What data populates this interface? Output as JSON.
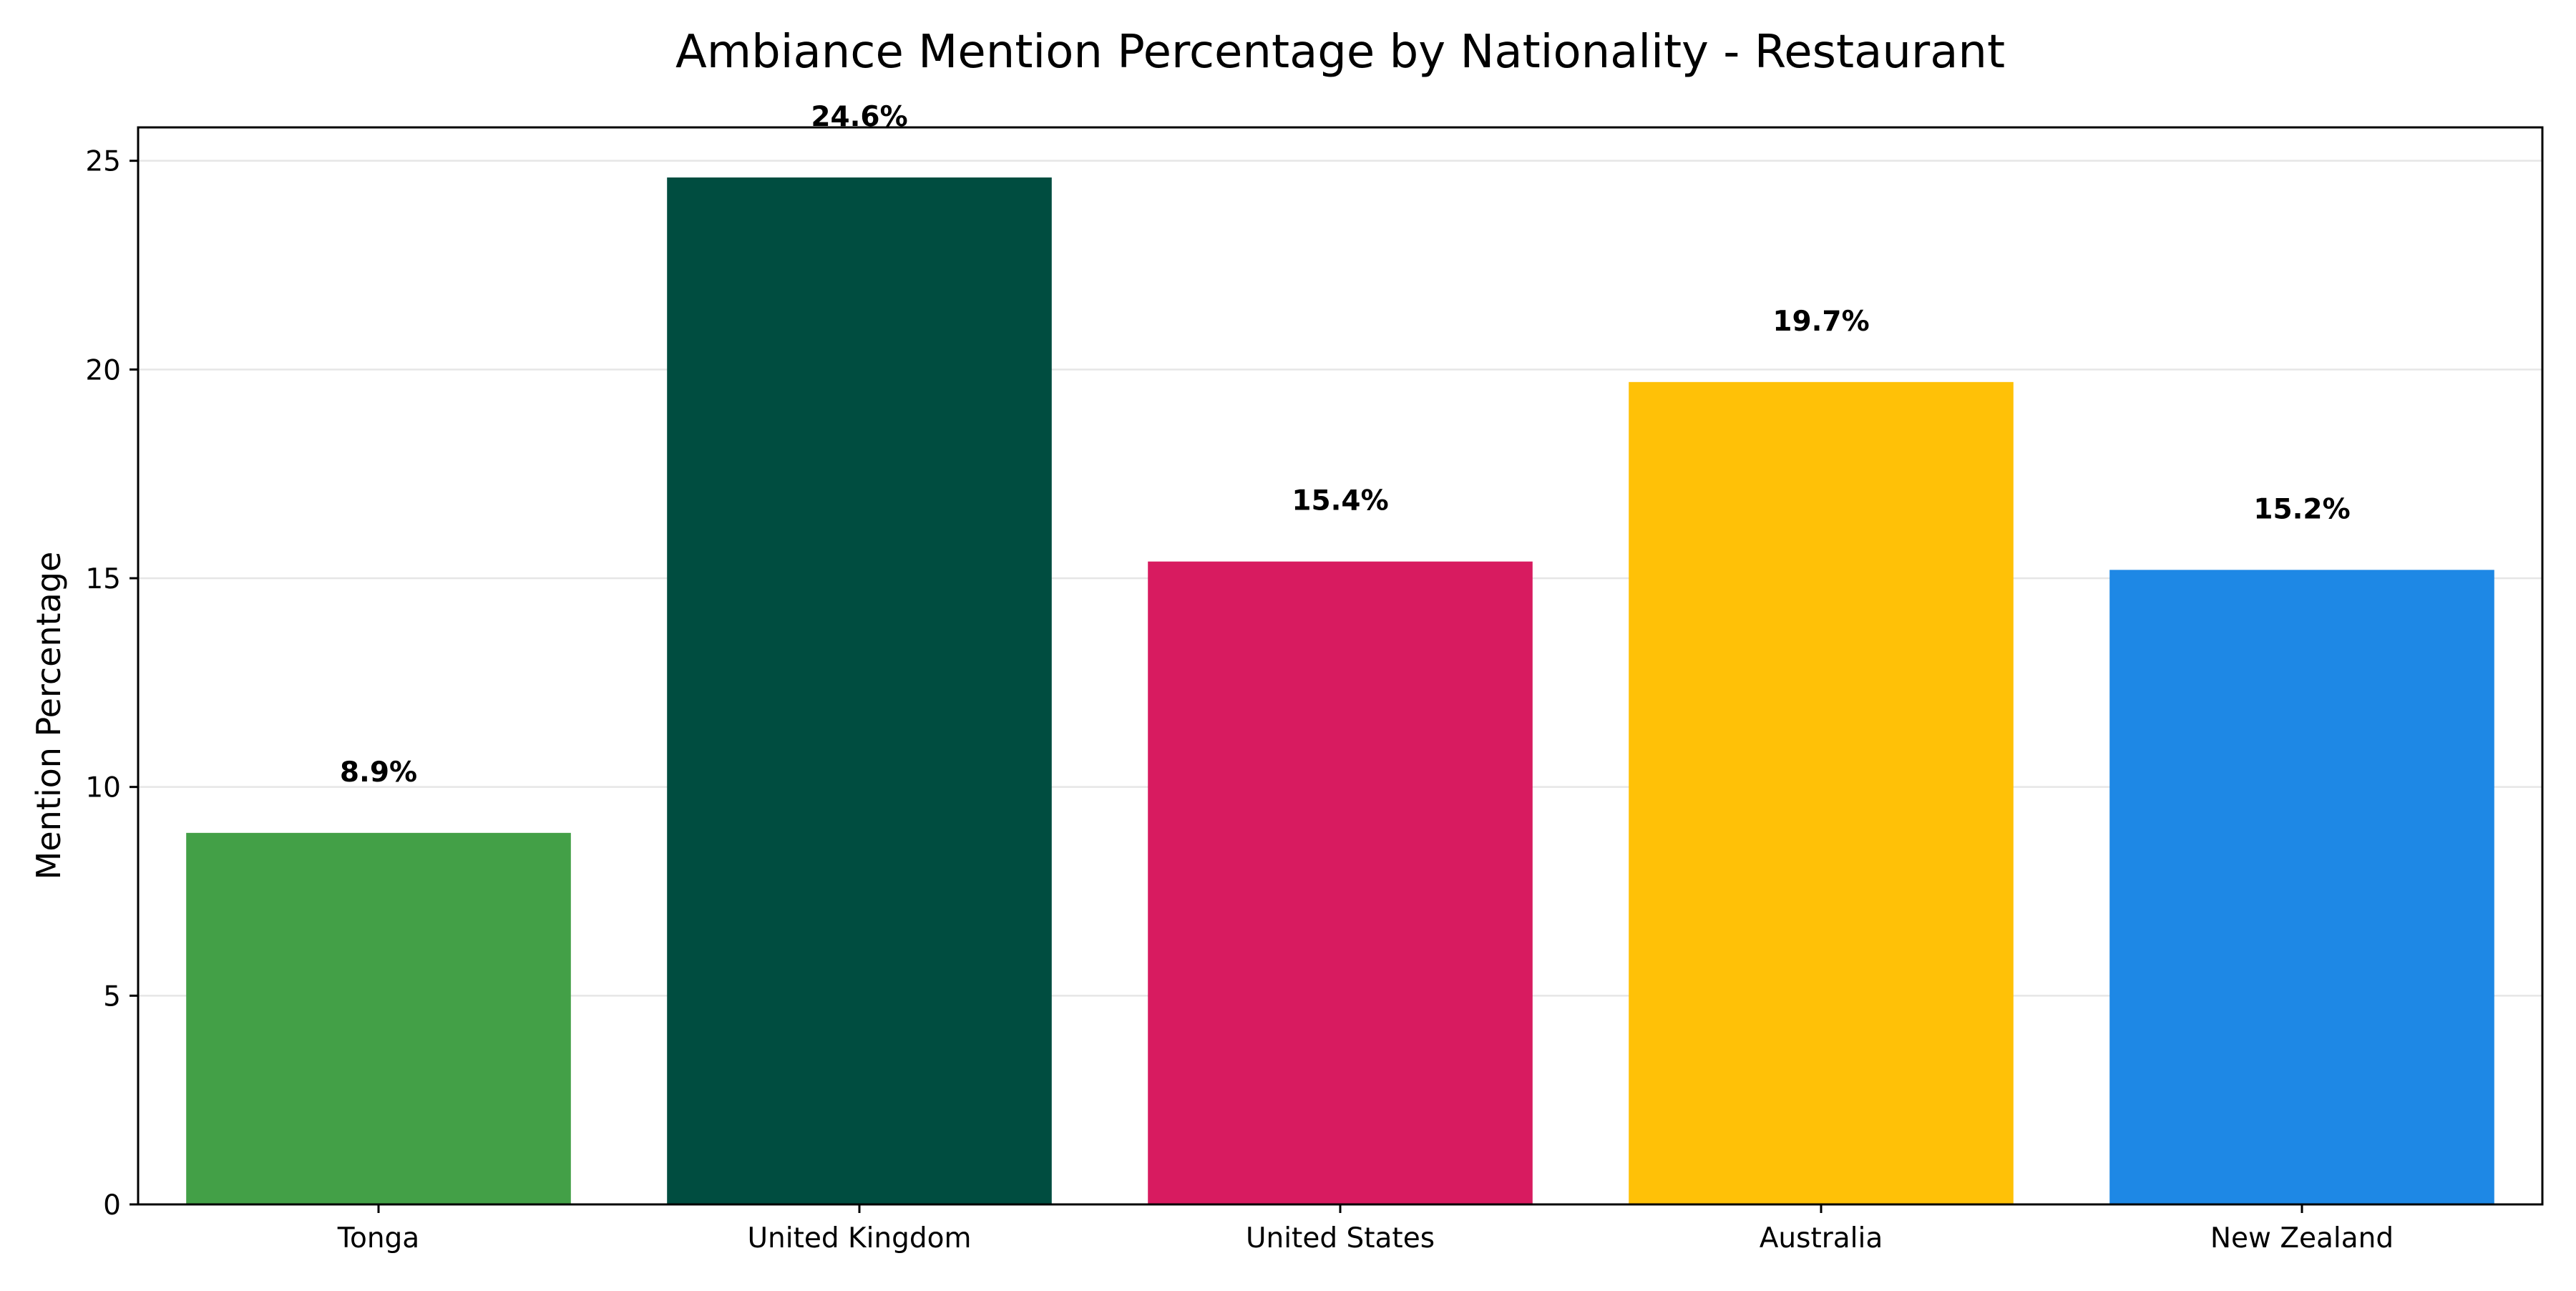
{
  "chart_data": {
    "type": "bar",
    "title": "Ambiance Mention Percentage by Nationality - Restaurant",
    "xlabel": "",
    "ylabel": "Mention Percentage",
    "categories": [
      "Tonga",
      "United Kingdom",
      "United States",
      "Australia",
      "New Zealand"
    ],
    "values": [
      8.9,
      24.6,
      15.4,
      19.7,
      15.2
    ],
    "data_labels": [
      "8.9%",
      "24.6%",
      "15.4%",
      "19.7%",
      "15.2%"
    ],
    "colors": [
      "#43a047",
      "#004d40",
      "#d81b60",
      "#ffc107",
      "#1e88e5"
    ],
    "ylim": [
      0,
      25.8
    ],
    "yticks": [
      0,
      5,
      10,
      15,
      20,
      25
    ],
    "ytick_labels": [
      "0",
      "5",
      "10",
      "15",
      "20",
      "25"
    ],
    "grid": "y-axis horizontal lines",
    "legend": "none"
  }
}
